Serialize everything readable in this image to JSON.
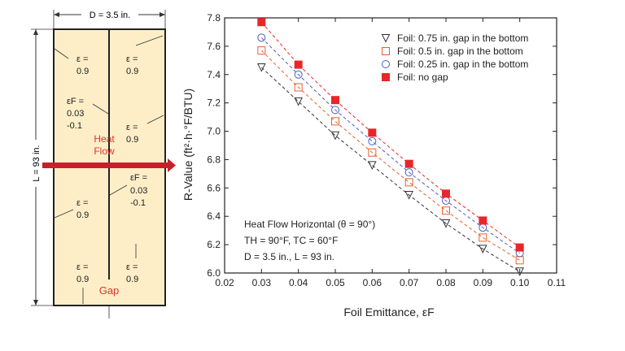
{
  "diagram": {
    "width_label": "D = 3.5 in.",
    "length_label": "L = 93 in.",
    "eps_symbol": "ε =",
    "eps_value": "0.9",
    "epsf_symbol": "εF =",
    "epsf_value_1": "0.03",
    "epsf_value_2": "-0.1",
    "heat_label_1": "Heat",
    "heat_label_2": "Flow",
    "gap_label": "Gap",
    "colors": {
      "panel": "#fdeec8",
      "arrow": "#c8202a",
      "heat_text": "#e0312e",
      "gap_text": "#e0312e"
    }
  },
  "chart_data": {
    "type": "scatter",
    "xlabel": "Foil Emittance, εF",
    "ylabel": "R-Value (ft²·h·°F/BTU)",
    "xlim": [
      0.02,
      0.11
    ],
    "ylim": [
      6.0,
      7.8
    ],
    "x_ticks": [
      "0.02",
      "0.03",
      "0.04",
      "0.05",
      "0.06",
      "0.07",
      "0.08",
      "0.09",
      "0.10",
      "0.11"
    ],
    "y_ticks": [
      "6.0",
      "6.2",
      "6.4",
      "6.6",
      "6.8",
      "7.0",
      "7.2",
      "7.4",
      "7.6",
      "7.8"
    ],
    "x": [
      0.03,
      0.04,
      0.05,
      0.06,
      0.07,
      0.08,
      0.09,
      0.1
    ],
    "series": [
      {
        "name": "Foil: 0.75 in. gap in the bottom",
        "marker": "triangle-down",
        "color": "#333333",
        "fill": "none",
        "values": [
          7.45,
          7.21,
          6.97,
          6.76,
          6.55,
          6.35,
          6.17,
          6.01
        ]
      },
      {
        "name": "Foil: 0.5 in. gap in the bottom",
        "marker": "square-open",
        "color": "#e8602c",
        "fill": "none",
        "values": [
          7.57,
          7.31,
          7.07,
          6.85,
          6.64,
          6.44,
          6.25,
          6.09
        ]
      },
      {
        "name": "Foil: 0.25 in. gap in the bottom",
        "marker": "circle-open",
        "color": "#4a5fc1",
        "fill": "none",
        "values": [
          7.66,
          7.4,
          7.15,
          6.93,
          6.71,
          6.51,
          6.32,
          6.14
        ]
      },
      {
        "name": "Foil: no gap",
        "marker": "square-filled",
        "color": "#e8262a",
        "fill": "#e8262a",
        "values": [
          7.77,
          7.47,
          7.22,
          6.99,
          6.77,
          6.56,
          6.37,
          6.18
        ]
      }
    ],
    "annotation": {
      "line1": "Heat Flow Horizontal (θ = 90°)",
      "line2": "TH = 90°F, TC = 60°F",
      "line3": "D = 3.5 in., L = 93 in."
    },
    "grid": false,
    "legend_position": "top-right"
  }
}
